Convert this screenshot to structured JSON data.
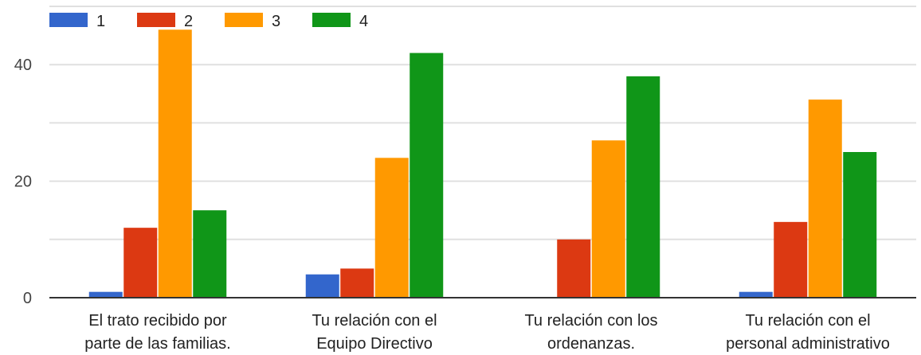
{
  "chart_data": {
    "type": "bar",
    "categories": [
      [
        "El trato recibido por",
        "parte de las familias."
      ],
      [
        "Tu relación con el",
        "Equipo Directivo"
      ],
      [
        "Tu relación con los",
        "ordenanzas."
      ],
      [
        "Tu relación con el",
        "personal administrativo"
      ]
    ],
    "series": [
      {
        "name": "1",
        "color": "#3366cc",
        "values": [
          1,
          4,
          0,
          1
        ]
      },
      {
        "name": "2",
        "color": "#dc3912",
        "values": [
          12,
          5,
          10,
          13
        ]
      },
      {
        "name": "3",
        "color": "#ff9900",
        "values": [
          46,
          24,
          27,
          34
        ]
      },
      {
        "name": "4",
        "color": "#109618",
        "values": [
          15,
          42,
          38,
          25
        ]
      }
    ],
    "yticks": [
      0,
      20,
      40
    ],
    "ylim": [
      0,
      50
    ],
    "gridlines": [
      10,
      20,
      30,
      40,
      50
    ],
    "legend_position": "top-left",
    "grid": true
  }
}
